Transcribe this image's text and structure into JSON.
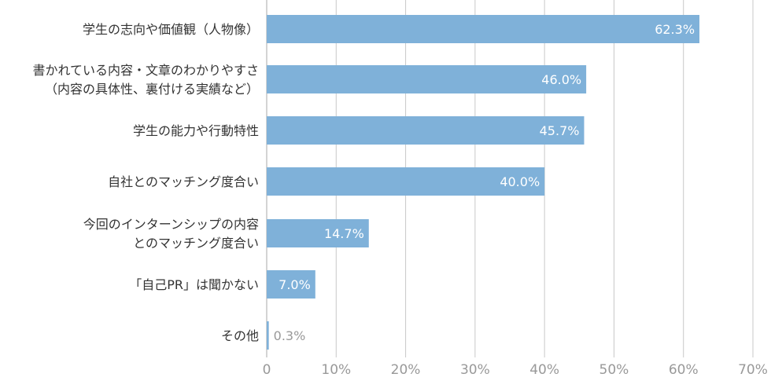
{
  "chart_data": {
    "type": "bar",
    "orientation": "horizontal",
    "categories": [
      [
        "学生の志向や価値観（人物像）"
      ],
      [
        "書かれている内容・文章のわかりやすさ",
        "（内容の具体性、裏付ける実績など）"
      ],
      [
        "学生の能力や行動特性"
      ],
      [
        "自社とのマッチング度合い"
      ],
      [
        "今回のインターンシップの内容",
        "とのマッチング度合い"
      ],
      [
        "「自己PR」は聞かない"
      ],
      [
        "その他"
      ]
    ],
    "values": [
      62.3,
      46.0,
      45.7,
      40.0,
      14.7,
      7.0,
      0.3
    ],
    "value_labels": [
      "62.3%",
      "46.0%",
      "45.7%",
      "40.0%",
      "14.7%",
      "7.0%",
      "0.3%"
    ],
    "x_ticks": [
      "0",
      "10%",
      "20%",
      "30%",
      "40%",
      "50%",
      "60%",
      "70%"
    ],
    "xlim": [
      0,
      70
    ],
    "grid": true,
    "colors": {
      "bar": "#7fb1d9",
      "grid": "#c8c8c8",
      "label_inside": "#ffffff",
      "label_outside": "#999999",
      "tick": "#999999"
    }
  }
}
